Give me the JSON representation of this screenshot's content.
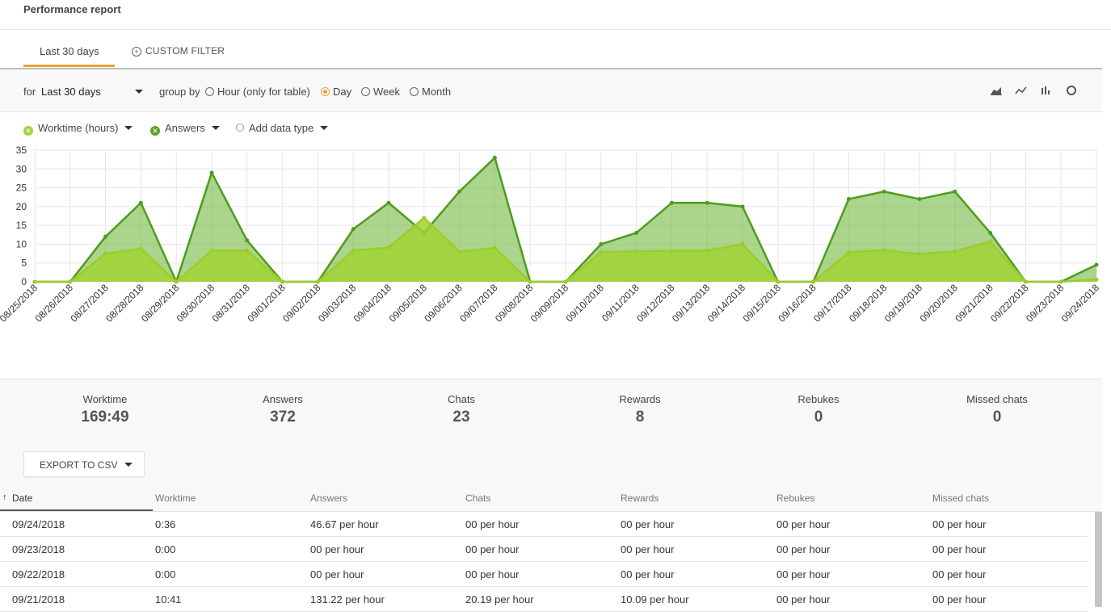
{
  "page_title": "Performance report",
  "tabs": {
    "active": "Last 30 days",
    "filter": "CUSTOM FILTER"
  },
  "toolbar": {
    "for_label": "for",
    "period": "Last 30 days",
    "group_by_label": "group by",
    "group_options": [
      "Hour (only for table)",
      "Day",
      "Week",
      "Month"
    ],
    "group_selected": "Day",
    "chart_types": [
      "area-chart-icon",
      "line-chart-icon",
      "bar-chart-icon",
      "donut-chart-icon"
    ]
  },
  "series_selector": {
    "items": [
      "Worktime (hours)",
      "Answers"
    ],
    "add_label": "Add data type"
  },
  "colors": {
    "accent": "#e8a33d",
    "answers": "#5aa524",
    "worktime": "#a6d13a"
  },
  "chart_data": {
    "type": "area",
    "x": [
      "08/25/2018",
      "08/26/2018",
      "08/27/2018",
      "08/28/2018",
      "08/29/2018",
      "08/30/2018",
      "08/31/2018",
      "09/01/2018",
      "09/02/2018",
      "09/03/2018",
      "09/04/2018",
      "09/05/2018",
      "09/06/2018",
      "09/07/2018",
      "09/08/2018",
      "09/09/2018",
      "09/10/2018",
      "09/11/2018",
      "09/12/2018",
      "09/13/2018",
      "09/14/2018",
      "09/15/2018",
      "09/16/2018",
      "09/17/2018",
      "09/18/2018",
      "09/19/2018",
      "09/20/2018",
      "09/21/2018",
      "09/22/2018",
      "09/23/2018",
      "09/24/2018"
    ],
    "series": [
      {
        "name": "Answers",
        "values": [
          0,
          0,
          12,
          21,
          0,
          29,
          11,
          0,
          0,
          14,
          21,
          13,
          24,
          33,
          0,
          0,
          10,
          13,
          21,
          21,
          20,
          0,
          0,
          22,
          24,
          22,
          24,
          13,
          0,
          0,
          4.5
        ]
      },
      {
        "name": "Worktime (hours)",
        "values": [
          0,
          0,
          7.5,
          8.8,
          0,
          8.3,
          8.3,
          0,
          0,
          8.3,
          9.1,
          17,
          8,
          9,
          0,
          0,
          7.9,
          8.1,
          8.2,
          8.3,
          10,
          0,
          0,
          7.9,
          8.4,
          7.4,
          8.1,
          10.7,
          0,
          0,
          0.6
        ]
      }
    ],
    "yticks": [
      0,
      5,
      10,
      15,
      20,
      25,
      30,
      35
    ],
    "ylim": [
      0,
      35
    ],
    "grid": true
  },
  "stats": [
    {
      "label": "Worktime",
      "value": "169:49"
    },
    {
      "label": "Answers",
      "value": "372"
    },
    {
      "label": "Chats",
      "value": "23"
    },
    {
      "label": "Rewards",
      "value": "8"
    },
    {
      "label": "Rebukes",
      "value": "0"
    },
    {
      "label": "Missed chats",
      "value": "0"
    }
  ],
  "export_label": "EXPORT TO CSV",
  "table": {
    "sort_indicator": "↑",
    "columns": [
      "Date",
      "Worktime",
      "Answers",
      "Chats",
      "Rewards",
      "Rebukes",
      "Missed chats"
    ],
    "rows": [
      [
        "09/24/2018",
        "0:36",
        "46.67 per hour",
        "00 per hour",
        "00 per hour",
        "00 per hour",
        "00 per hour"
      ],
      [
        "09/23/2018",
        "0:00",
        "00 per hour",
        "00 per hour",
        "00 per hour",
        "00 per hour",
        "00 per hour"
      ],
      [
        "09/22/2018",
        "0:00",
        "00 per hour",
        "00 per hour",
        "00 per hour",
        "00 per hour",
        "00 per hour"
      ],
      [
        "09/21/2018",
        "10:41",
        "131.22 per hour",
        "20.19 per hour",
        "10.09 per hour",
        "00 per hour",
        "00 per hour"
      ]
    ]
  }
}
